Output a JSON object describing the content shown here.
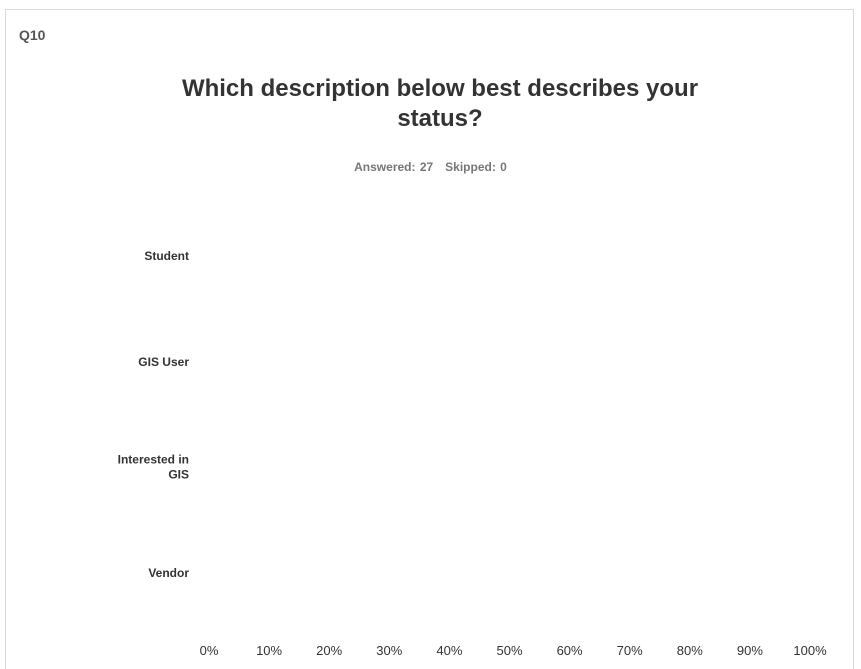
{
  "question": {
    "number": "Q10",
    "title": "Which description below best describes your status?",
    "answered_label": "Answered: 27",
    "skipped_label": "Skipped: 0"
  },
  "chart_data": {
    "type": "bar",
    "orientation": "horizontal",
    "title": "Which description below best describes your status?",
    "categories": [
      "Student",
      "GIS User",
      "Interested in GIS",
      "Vendor"
    ],
    "values": [
      null,
      null,
      null,
      null
    ],
    "x_ticks": [
      "0%",
      "10%",
      "20%",
      "30%",
      "40%",
      "50%",
      "60%",
      "70%",
      "80%",
      "90%",
      "100%"
    ],
    "xlim": [
      0,
      100
    ],
    "grid": false
  }
}
